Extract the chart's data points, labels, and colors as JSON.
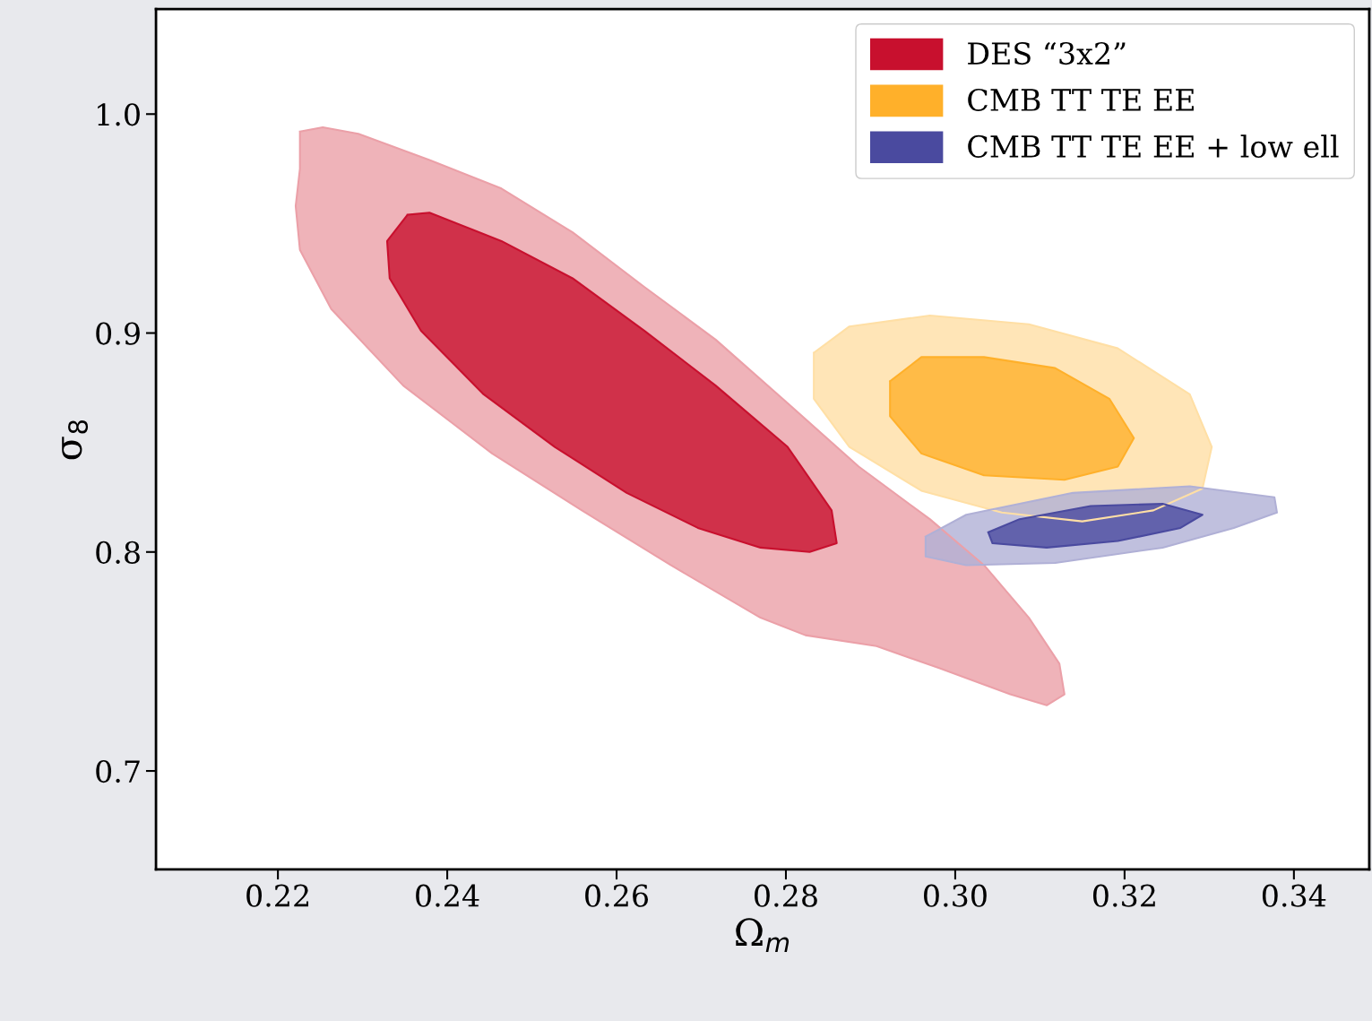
{
  "chart_data": {
    "type": "area",
    "xlabel": "Ω$_{m}$",
    "ylabel": "σ$_{8}$",
    "xlim": [
      0.2056,
      0.3489
    ],
    "ylim": [
      0.655,
      1.048
    ],
    "xticks": [
      0.22,
      0.24,
      0.26,
      0.28,
      {
        "value": 0.3,
        "label": "0.30"
      },
      0.32,
      0.34
    ],
    "yticks": [
      0.7,
      0.8,
      0.9,
      {
        "value": 1.0,
        "label": "1.0"
      }
    ],
    "grid": false,
    "legend": "top right",
    "series": [
      {
        "color": "#eba0a8",
        "x": [
          0.2226,
          0.2253,
          0.2295,
          0.2379,
          0.2464,
          0.2548,
          0.2633,
          0.2717,
          0.2802,
          0.2886,
          0.297,
          0.3034,
          0.3087,
          0.3123,
          0.3129,
          0.3108,
          0.3065,
          0.2981,
          0.2907,
          0.2823,
          0.277,
          0.2664,
          0.2559,
          0.2453,
          0.2348,
          0.2263,
          0.2226,
          0.2221,
          0.2226
        ],
        "values": [
          0.992,
          0.994,
          0.991,
          0.979,
          0.966,
          0.946,
          0.921,
          0.897,
          0.868,
          0.839,
          0.815,
          0.794,
          0.77,
          0.749,
          0.735,
          0.73,
          0.735,
          0.747,
          0.757,
          0.762,
          0.77,
          0.794,
          0.819,
          0.845,
          0.876,
          0.911,
          0.938,
          0.958,
          0.975
        ]
      },
      {
        "name": "DES “3x2”",
        "color": "#c8102e",
        "x": [
          0.2353,
          0.2379,
          0.2464,
          0.2548,
          0.2633,
          0.2717,
          0.2802,
          0.2854,
          0.286,
          0.2828,
          0.277,
          0.2696,
          0.2612,
          0.2527,
          0.2443,
          0.2369,
          0.2332,
          0.2329
        ],
        "values": [
          0.954,
          0.955,
          0.942,
          0.925,
          0.901,
          0.876,
          0.848,
          0.819,
          0.804,
          0.8,
          0.802,
          0.811,
          0.827,
          0.848,
          0.872,
          0.901,
          0.925,
          0.942
        ]
      },
      {
        "color": "#ffdfa5",
        "x": [
          0.2833,
          0.2875,
          0.297,
          0.3087,
          0.3192,
          0.3277,
          0.3303,
          0.3292,
          0.3234,
          0.315,
          0.3055,
          0.296,
          0.2875,
          0.2833
        ],
        "values": [
          0.891,
          0.903,
          0.908,
          0.904,
          0.893,
          0.872,
          0.848,
          0.829,
          0.819,
          0.814,
          0.818,
          0.828,
          0.848,
          0.87
        ]
      },
      {
        "name": "CMB TT TE EE",
        "color": "#ffb02a",
        "x": [
          0.2923,
          0.296,
          0.3034,
          0.3118,
          0.3182,
          0.3211,
          0.3192,
          0.3129,
          0.3034,
          0.296,
          0.2923
        ],
        "values": [
          0.878,
          0.889,
          0.889,
          0.884,
          0.87,
          0.852,
          0.839,
          0.833,
          0.835,
          0.845,
          0.862
        ]
      },
      {
        "color": "#b0b0d6",
        "x": [
          0.2965,
          0.3013,
          0.3139,
          0.3277,
          0.3377,
          0.338,
          0.3329,
          0.3245,
          0.3118,
          0.3013,
          0.2965
        ],
        "values": [
          0.807,
          0.817,
          0.827,
          0.83,
          0.825,
          0.818,
          0.811,
          0.802,
          0.795,
          0.794,
          0.798
        ]
      },
      {
        "name": "CMB TT TE EE + low ell",
        "color": "#4a4a9f",
        "x": [
          0.3039,
          0.3076,
          0.316,
          0.3245,
          0.3292,
          0.3266,
          0.3192,
          0.3108,
          0.3044
        ],
        "values": [
          0.809,
          0.815,
          0.821,
          0.822,
          0.817,
          0.811,
          0.805,
          0.802,
          0.804
        ]
      }
    ]
  }
}
